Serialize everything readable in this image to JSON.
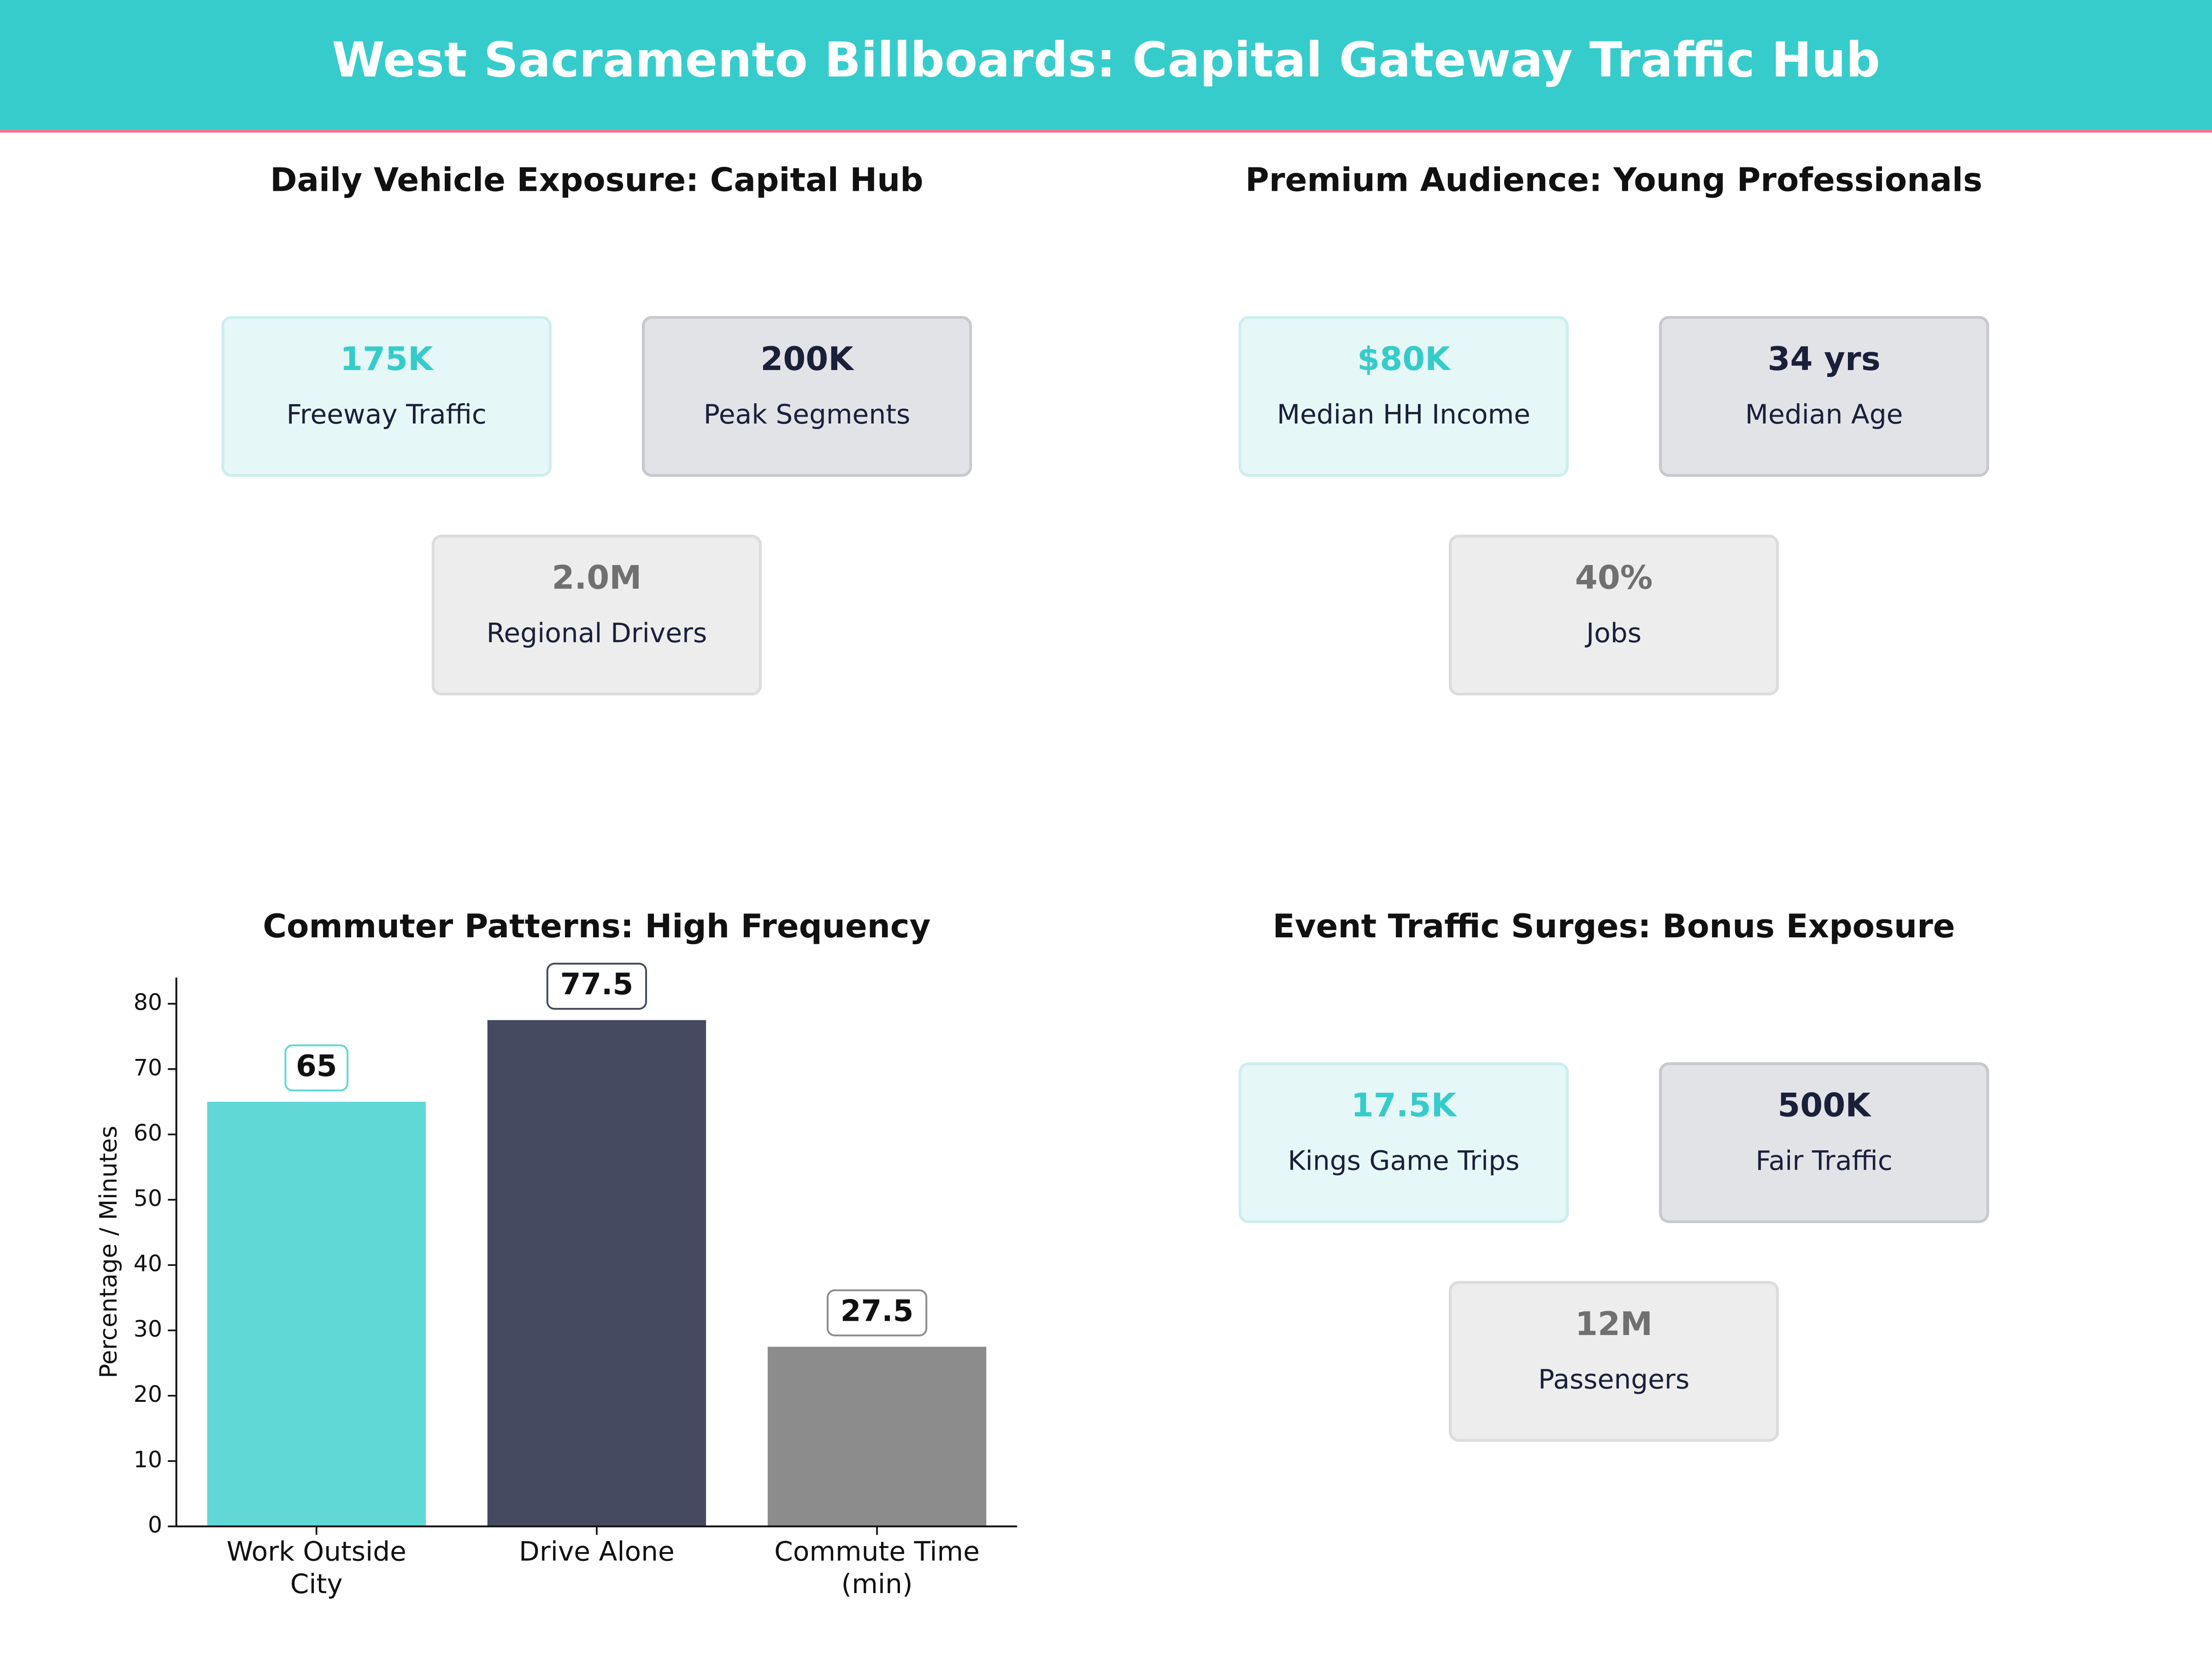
{
  "title": "West Sacramento Billboards: Capital Gateway Traffic Hub",
  "panels": [
    {
      "title": "Daily Vehicle Exposure: Capital Hub",
      "cards": [
        {
          "value": "175K",
          "label": "Freeway Traffic"
        },
        {
          "value": "200K",
          "label": "Peak Segments"
        },
        {
          "value": "2.0M",
          "label": "Regional Drivers"
        }
      ]
    },
    {
      "title": "Premium Audience: Young Professionals",
      "cards": [
        {
          "value": "$80K",
          "label": "Median HH Income"
        },
        {
          "value": "34 yrs",
          "label": "Median Age"
        },
        {
          "value": "40%",
          "label": "Jobs"
        }
      ]
    },
    {
      "title": "Event Traffic Surges: Bonus Exposure",
      "cards": [
        {
          "value": "17.5K",
          "label": "Kings Game Trips"
        },
        {
          "value": "500K",
          "label": "Fair Traffic"
        },
        {
          "value": "12M",
          "label": "Passengers"
        }
      ]
    }
  ],
  "chart_data": {
    "type": "bar",
    "title": "Commuter Patterns: High Frequency",
    "categories": [
      "Work Outside\nCity",
      "Drive Alone",
      "Commute Time\n(min)"
    ],
    "values": [
      65,
      77.5,
      27.5
    ],
    "colors": [
      "#5fd8d6",
      "#454a60",
      "#8c8c8c"
    ],
    "y_label": "Percentage / Minutes",
    "ylim": [
      0,
      84
    ],
    "yticks": [
      0,
      10,
      20,
      30,
      40,
      50,
      60,
      70,
      80
    ]
  }
}
